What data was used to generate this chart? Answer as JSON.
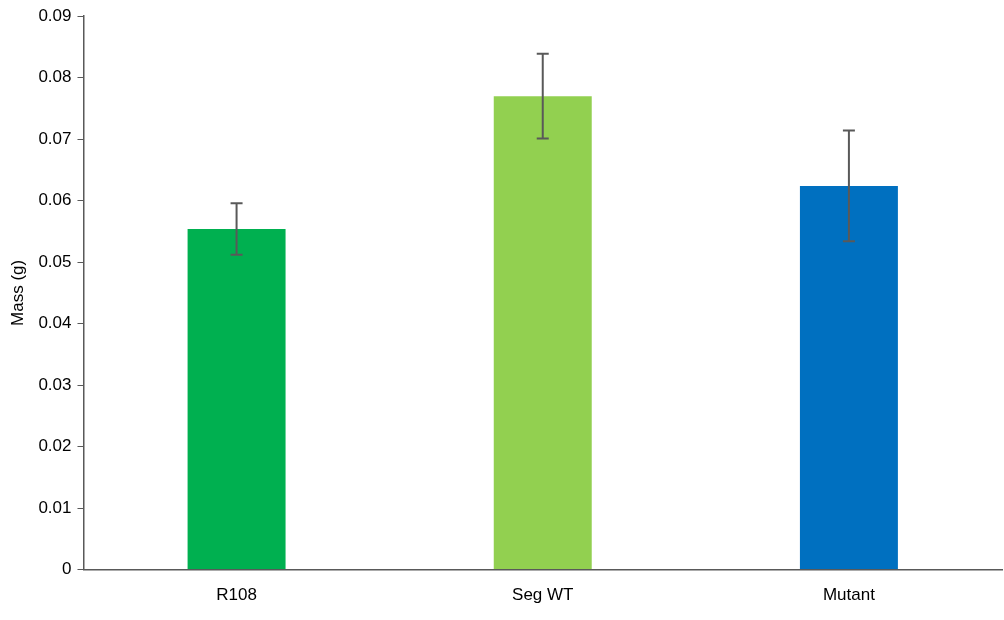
{
  "chart_data": {
    "type": "bar",
    "ylabel": "Mass (g)",
    "categories": [
      "R108",
      "Seg WT",
      "Mutant"
    ],
    "values": [
      0.0554,
      0.077,
      0.0624
    ],
    "colors": [
      "#00b050",
      "#92d050",
      "#0070c0"
    ],
    "errors": [
      0.0042,
      0.0069,
      0.009
    ],
    "ylim": [
      0,
      0.09
    ],
    "yticks": [
      0,
      0.01,
      0.02,
      0.03,
      0.04,
      0.05,
      0.06,
      0.07,
      0.08,
      0.09
    ],
    "grid": false,
    "legend": false
  }
}
